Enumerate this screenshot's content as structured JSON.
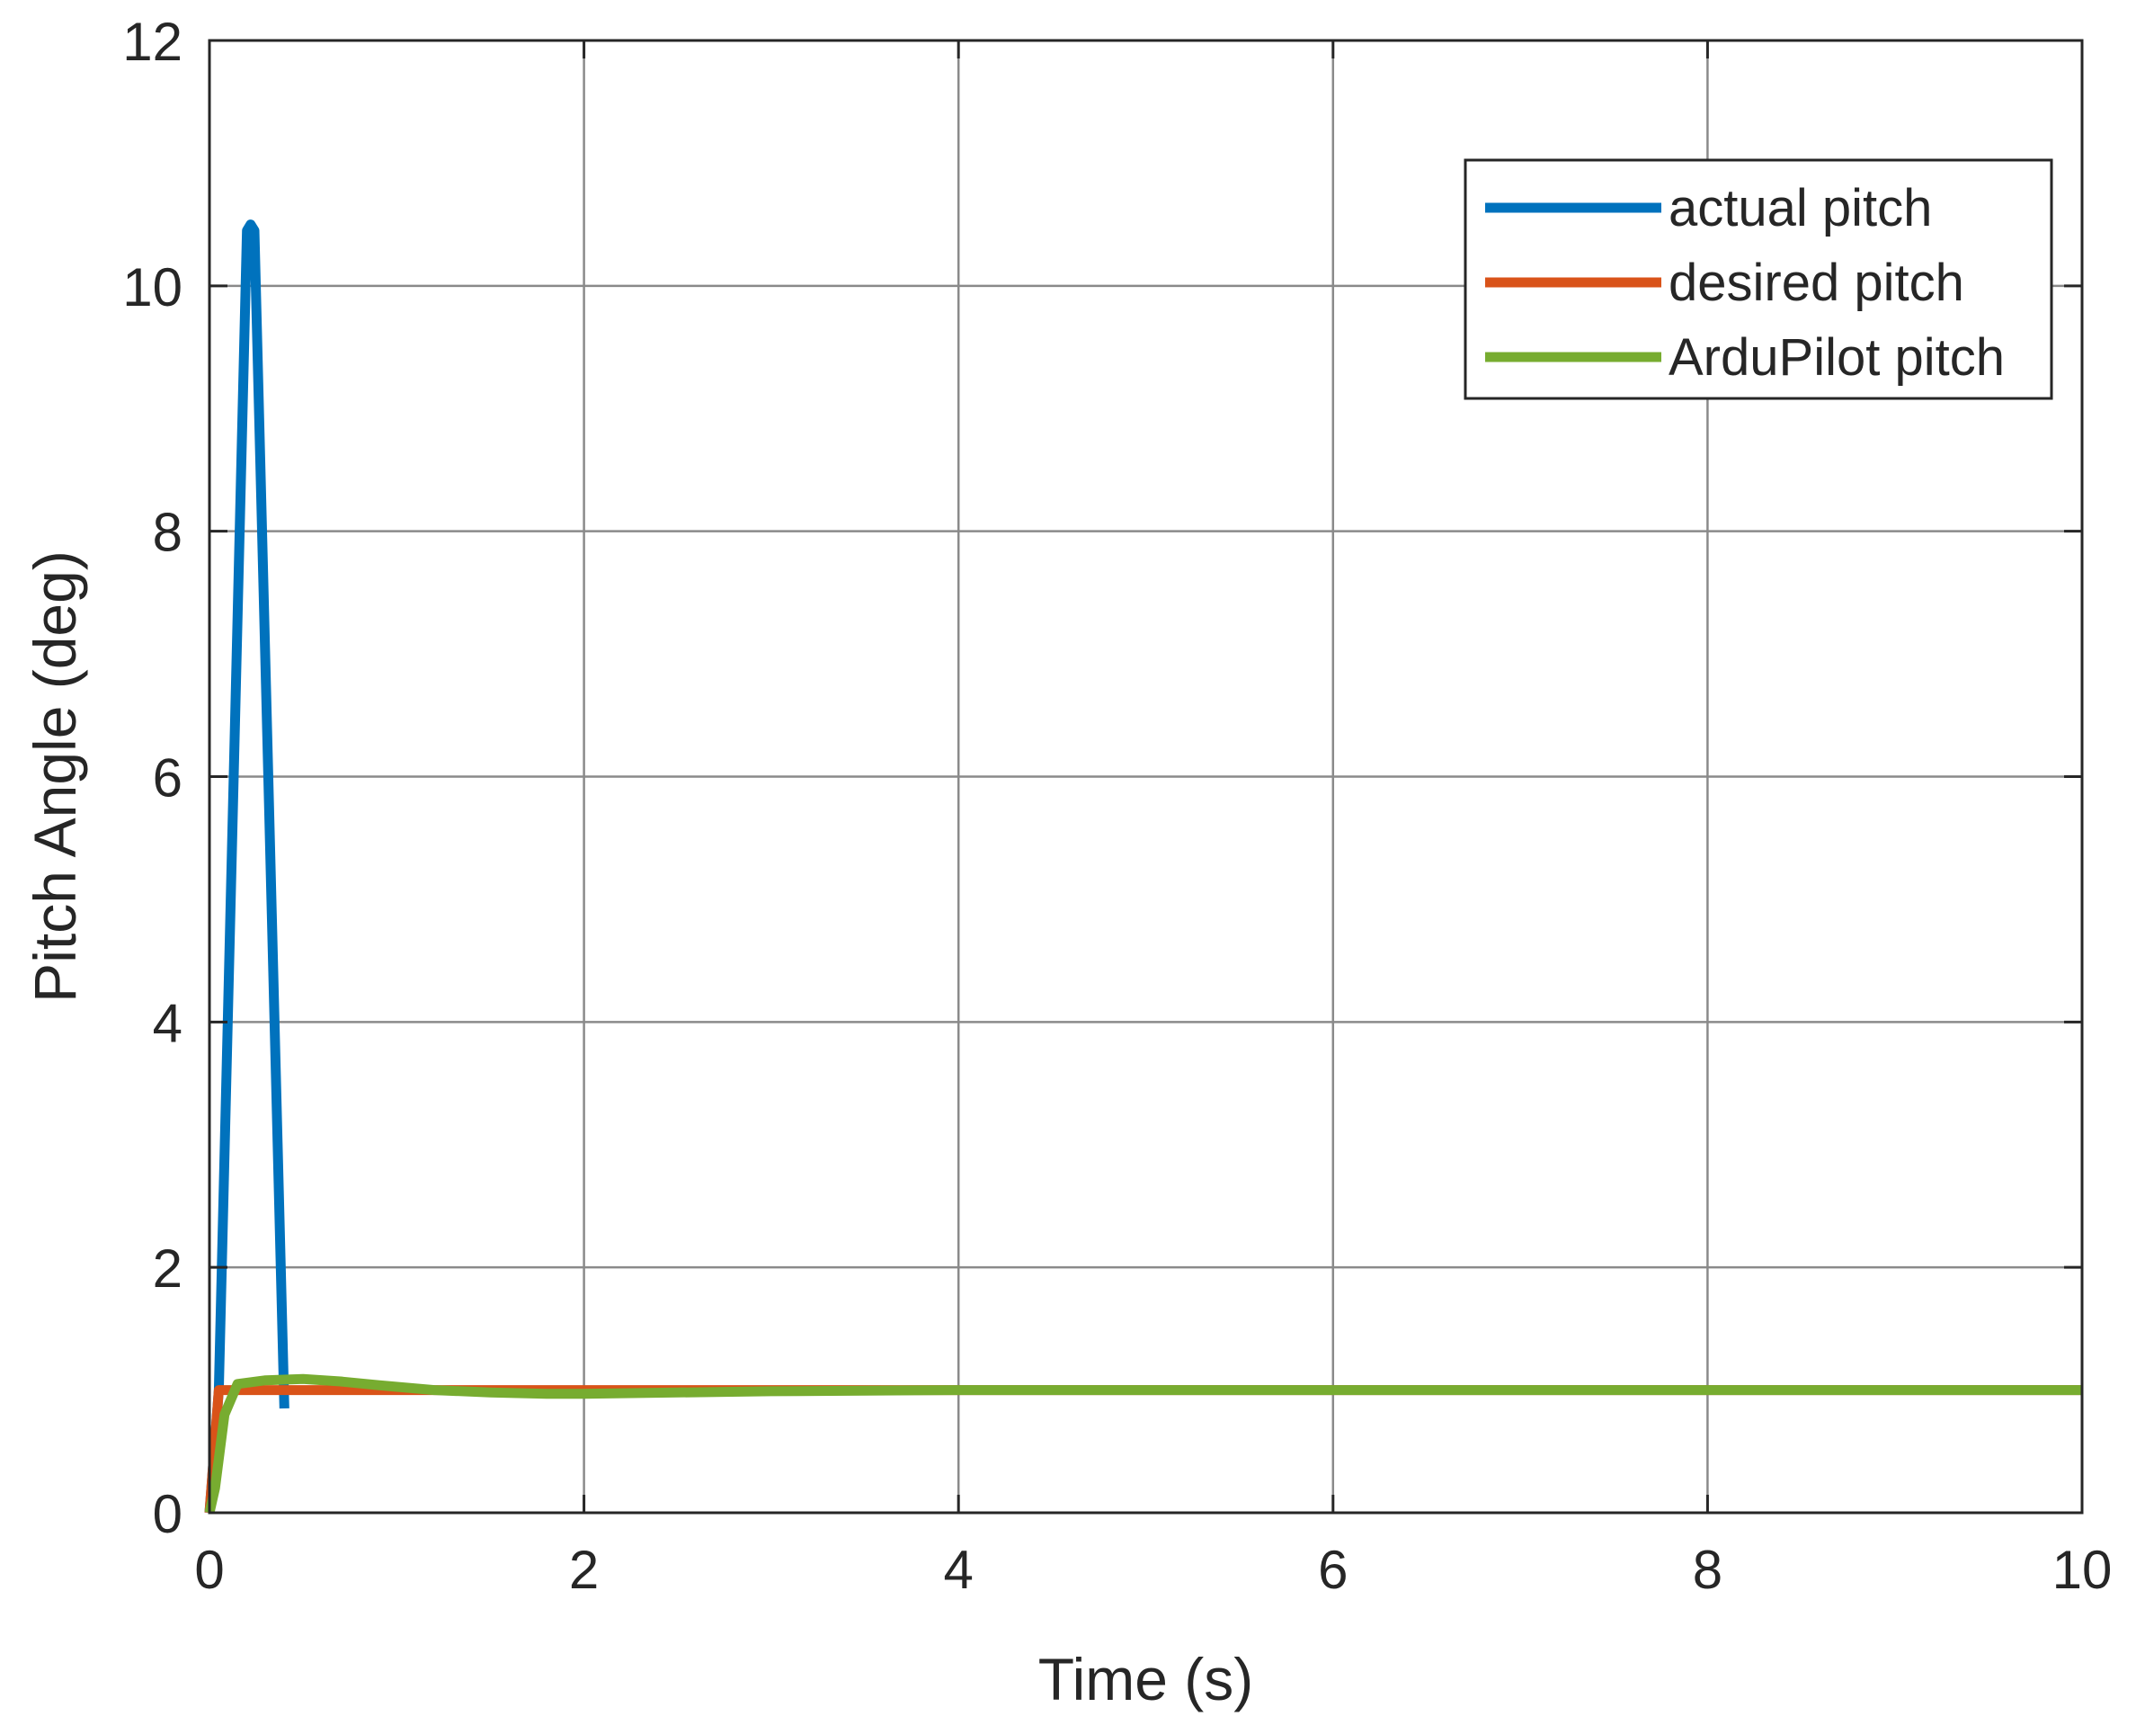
{
  "chart_data": {
    "type": "line",
    "title": "",
    "xlabel": "Time (s)",
    "ylabel": "Pitch Angle (deg)",
    "xlim": [
      0,
      10
    ],
    "ylim": [
      0,
      12
    ],
    "xticks": [
      0,
      2,
      4,
      6,
      8,
      10
    ],
    "yticks": [
      0,
      2,
      4,
      6,
      8,
      10,
      12
    ],
    "xtick_labels": [
      "0",
      "2",
      "4",
      "6",
      "8",
      "10"
    ],
    "ytick_labels": [
      "0",
      "2",
      "4",
      "6",
      "8",
      "10",
      "12"
    ],
    "grid": true,
    "legend_position": "top-right",
    "series": [
      {
        "name": "actual pitch",
        "color": "#0072BD",
        "x": [
          0,
          0.05,
          0.2,
          0.22,
          0.24,
          0.4
        ],
        "y": [
          0,
          1.0,
          10.45,
          10.5,
          10.45,
          0.85
        ]
      },
      {
        "name": "desired pitch",
        "color": "#D95319",
        "x": [
          0,
          0.05,
          10
        ],
        "y": [
          0,
          1.0,
          1.0
        ]
      },
      {
        "name": "ArduPilot pitch",
        "color": "#77AC30",
        "x": [
          0,
          0.03,
          0.08,
          0.15,
          0.3,
          0.5,
          0.7,
          0.9,
          1.2,
          1.5,
          1.8,
          2.0,
          2.5,
          3.0,
          4.0,
          5.0,
          6.0,
          8.0,
          10.0
        ],
        "y": [
          0,
          0.2,
          0.8,
          1.05,
          1.08,
          1.09,
          1.07,
          1.04,
          1.0,
          0.98,
          0.97,
          0.97,
          0.98,
          0.99,
          1.0,
          1.0,
          1.0,
          1.0,
          1.0
        ]
      }
    ]
  }
}
